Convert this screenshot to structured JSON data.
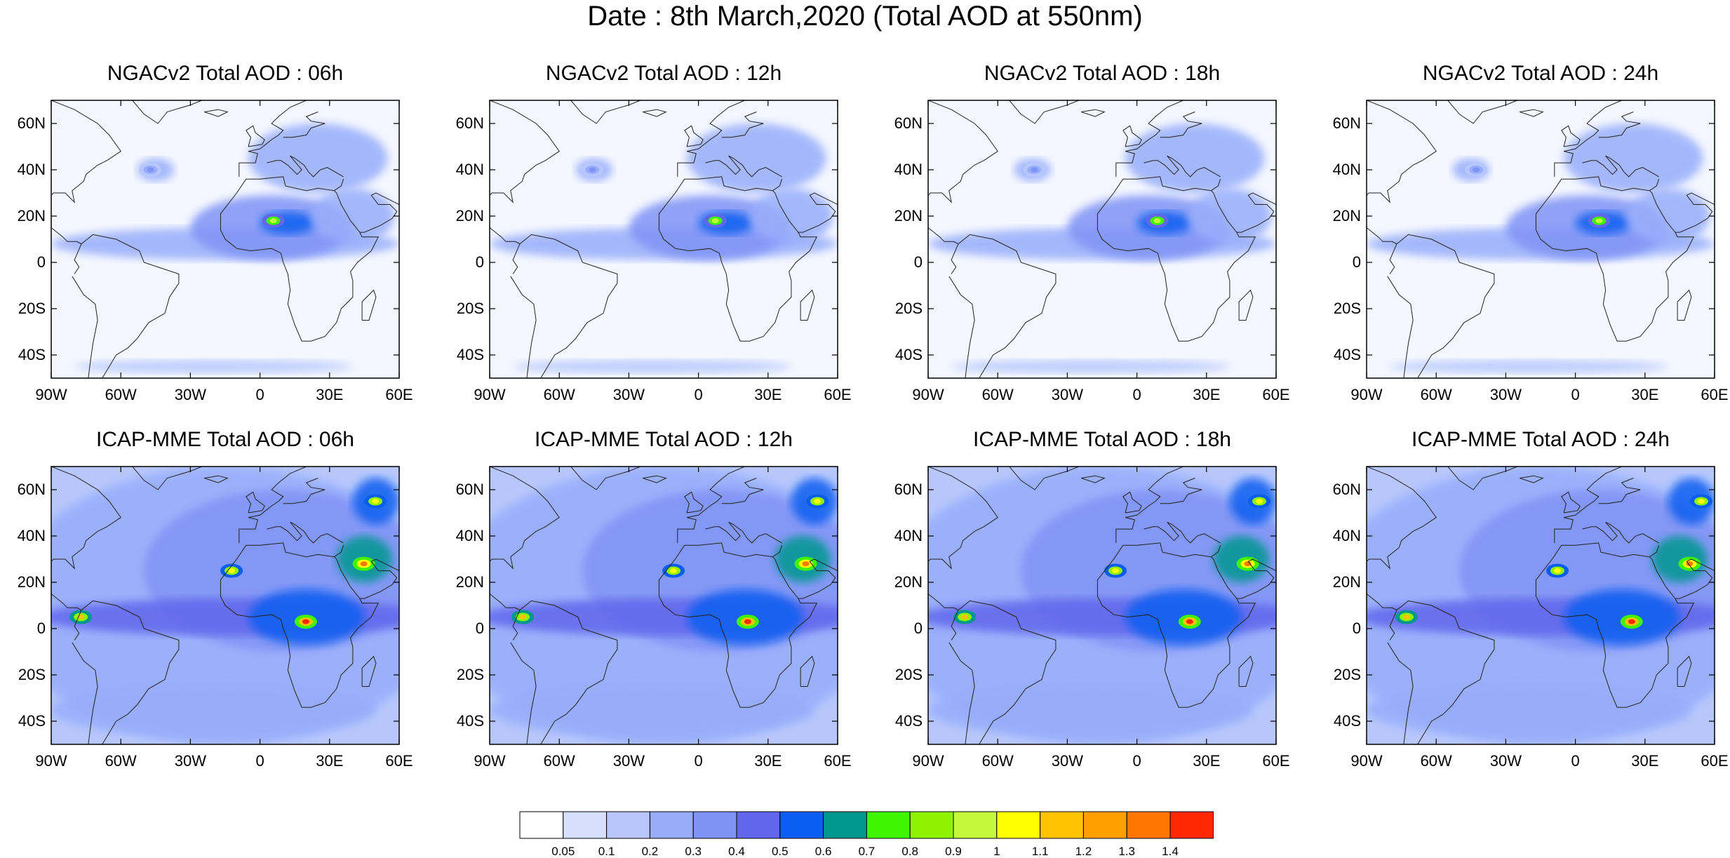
{
  "title": "Date : 8th March,2020 (Total AOD at 550nm)",
  "lat_ticks": [
    "60N",
    "40N",
    "20N",
    "0",
    "20S",
    "40S"
  ],
  "lat_values": [
    60,
    40,
    20,
    0,
    -20,
    -40
  ],
  "lon_ticks": [
    "90W",
    "60W",
    "30W",
    "0",
    "30E",
    "60E"
  ],
  "lon_values": [
    -90,
    -60,
    -30,
    0,
    30,
    60
  ],
  "extent": {
    "lon": [
      -90,
      60
    ],
    "lat": [
      -50,
      70
    ]
  },
  "panels": [
    {
      "title": "NGACv2 Total AOD : 06h",
      "model": "NGACv2",
      "hour": "06h"
    },
    {
      "title": "NGACv2 Total AOD : 12h",
      "model": "NGACv2",
      "hour": "12h"
    },
    {
      "title": "NGACv2 Total AOD : 18h",
      "model": "NGACv2",
      "hour": "18h"
    },
    {
      "title": "NGACv2 Total AOD : 24h",
      "model": "NGACv2",
      "hour": "24h"
    },
    {
      "title": "ICAP-MME Total AOD : 06h",
      "model": "ICAP-MME",
      "hour": "06h"
    },
    {
      "title": "ICAP-MME Total AOD : 12h",
      "model": "ICAP-MME",
      "hour": "12h"
    },
    {
      "title": "ICAP-MME Total AOD : 18h",
      "model": "ICAP-MME",
      "hour": "18h"
    },
    {
      "title": "ICAP-MME Total AOD : 24h",
      "model": "ICAP-MME",
      "hour": "24h"
    }
  ],
  "colorbar": {
    "labels": [
      "0.05",
      "0.1",
      "0.2",
      "0.3",
      "0.4",
      "0.5",
      "0.6",
      "0.7",
      "0.8",
      "0.9",
      "1",
      "1.1",
      "1.2",
      "1.3",
      "1.4"
    ],
    "colors": [
      "#ffffff",
      "#d6e0fd",
      "#b7c7fc",
      "#97adfb",
      "#7f93f5",
      "#6266ec",
      "#0c5ef0",
      "#00978f",
      "#3ef400",
      "#8ff300",
      "#c5f73a",
      "#fffe00",
      "#ffc400",
      "#ff9f00",
      "#ff7600",
      "#fe2800"
    ]
  },
  "hotspots": {
    "NGACv2": [
      {
        "lon": 8,
        "lat": 18,
        "value": 0.9
      },
      {
        "lon": -45,
        "lat": 40,
        "value": 0.3
      }
    ],
    "ICAP-MME": [
      {
        "lon": -10,
        "lat": 25,
        "value": 1.0
      },
      {
        "lon": 22,
        "lat": 3,
        "value": 1.4
      },
      {
        "lon": 47,
        "lat": 28,
        "value": 1.3
      },
      {
        "lon": 52,
        "lat": 55,
        "value": 1.0
      },
      {
        "lon": -75,
        "lat": 5,
        "value": 1.1
      }
    ]
  }
}
